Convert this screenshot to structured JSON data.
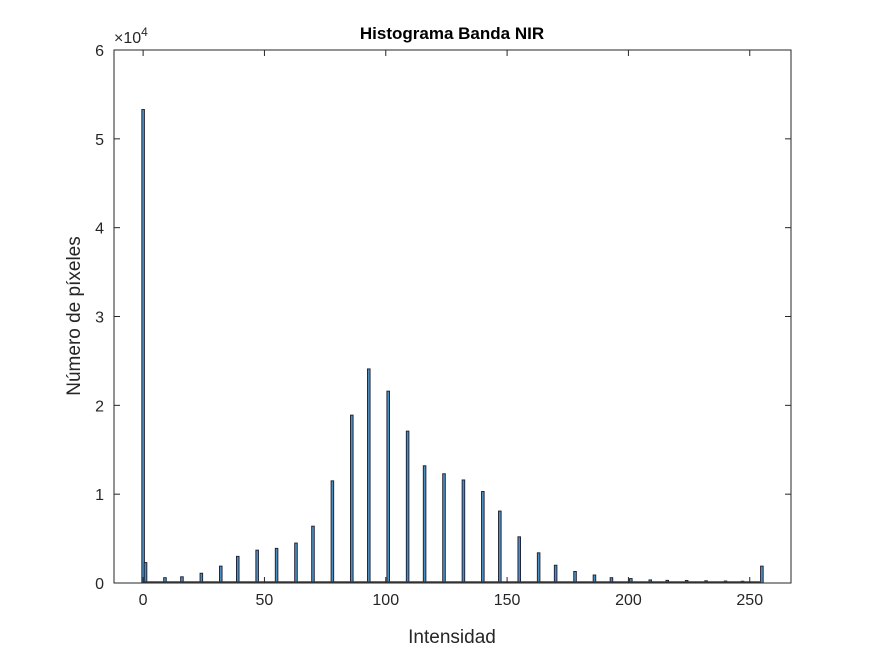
{
  "chart_data": {
    "type": "bar",
    "title": "Histograma Banda NIR",
    "xlabel": "Intensidad",
    "ylabel": "Número de píxeles",
    "xlim": [
      -12,
      267
    ],
    "ylim": [
      0,
      60000
    ],
    "x_ticks": [
      0,
      50,
      100,
      150,
      200,
      250
    ],
    "y_ticks": [
      0,
      10000,
      20000,
      30000,
      40000,
      50000,
      60000
    ],
    "y_tick_labels": [
      "0",
      "1",
      "2",
      "3",
      "4",
      "5",
      "6"
    ],
    "y_exponent_base": "×10",
    "y_exponent_power": "4",
    "grid": false,
    "bar_color": "#4a8fbf",
    "edge_color": "#1a1a2e",
    "x": [
      0,
      1,
      9,
      16,
      24,
      32,
      39,
      47,
      55,
      63,
      70,
      78,
      86,
      93,
      101,
      109,
      116,
      124,
      132,
      140,
      147,
      155,
      163,
      170,
      178,
      186,
      193,
      201,
      209,
      216,
      224,
      232,
      240,
      247,
      255
    ],
    "values": [
      53300,
      2300,
      600,
      700,
      1100,
      1900,
      3000,
      3700,
      3900,
      4500,
      6400,
      11500,
      18900,
      24100,
      21600,
      17100,
      13200,
      12300,
      11600,
      10300,
      8100,
      5200,
      3400,
      2000,
      1300,
      900,
      600,
      500,
      350,
      300,
      280,
      250,
      220,
      200,
      1900
    ]
  }
}
